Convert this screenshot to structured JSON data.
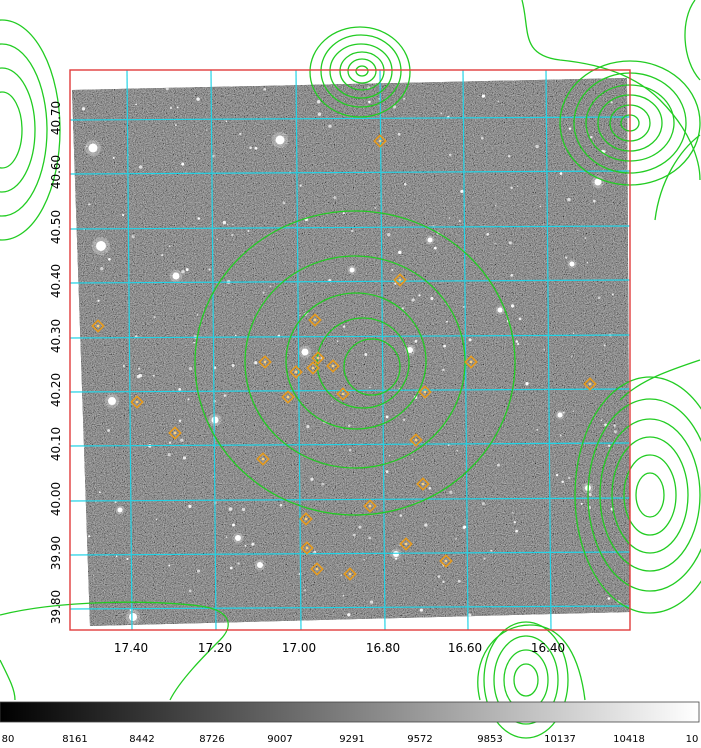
{
  "image": {
    "type": "astronomical-fits-overlay",
    "frame_color": "#e23b3b",
    "grid_color": "#22d3e6",
    "contour_color": "#22cc22",
    "marker_color": "#e69a1c"
  },
  "axes": {
    "ra_ticks": [
      "17.40",
      "17.20",
      "17.00",
      "16.80",
      "16.60",
      "16.40"
    ],
    "dec_ticks": [
      "40.70",
      "40.60",
      "40.50",
      "40.40",
      "40.30",
      "40.20",
      "40.10",
      "40.00",
      "39.90",
      "39.80"
    ]
  },
  "colorbar": {
    "ticks": [
      "80",
      "8161",
      "8442",
      "8726",
      "9007",
      "9291",
      "9572",
      "9853",
      "10137",
      "10418",
      "10"
    ]
  }
}
